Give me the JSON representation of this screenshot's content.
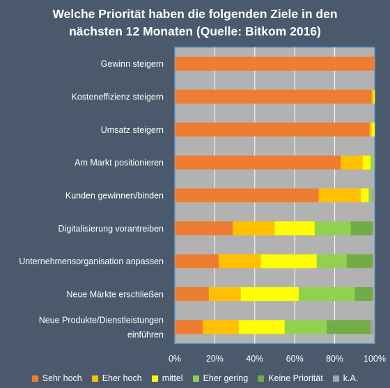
{
  "chart_data": {
    "type": "bar",
    "orientation": "horizontal",
    "stacked": "percent",
    "title_lines": [
      "Welche Priorität haben die folgenden Ziele in den",
      "nächsten 12 Monaten (Quelle: Bitkom 2016)"
    ],
    "categories": [
      [
        "Gewinn steigern"
      ],
      [
        "Kosteneffizienz steigern"
      ],
      [
        "Umsatz steigern"
      ],
      [
        "Am Markt positionieren"
      ],
      [
        "Kunden gewinnen/binden"
      ],
      [
        "Digitalisierung vorantreiben"
      ],
      [
        "Unternehmensorganisation anpassen"
      ],
      [
        "Neue Märkte erschließen"
      ],
      [
        "Neue Produkte/Dienstleistungen",
        "einführen"
      ]
    ],
    "series": [
      {
        "name": "Sehr hoch",
        "color": "#ed7d31",
        "values": [
          100,
          98.5,
          97.5,
          83,
          72,
          29,
          22,
          17,
          14
        ]
      },
      {
        "name": "Eher hoch",
        "color": "#ffc000",
        "values": [
          0,
          1,
          1,
          11,
          21,
          21,
          21,
          16,
          18
        ]
      },
      {
        "name": "mittel",
        "color": "#ffff00",
        "values": [
          0,
          0.5,
          1.5,
          4,
          4,
          20,
          28,
          29,
          23
        ]
      },
      {
        "name": "Eher gering",
        "color": "#92d050",
        "values": [
          0,
          0,
          0,
          1.5,
          1.5,
          18,
          15,
          28,
          21
        ]
      },
      {
        "name": "Keine Priorität",
        "color": "#70ad47",
        "values": [
          0,
          0,
          0,
          0,
          0,
          11,
          13,
          9,
          22
        ]
      },
      {
        "name": "k.A.",
        "color": "#a5a5a5",
        "values": [
          0,
          0,
          0,
          0.5,
          1.5,
          1,
          1,
          1,
          2
        ]
      }
    ],
    "x_ticks": [
      "0%",
      "20%",
      "40%",
      "60%",
      "80%",
      "100%"
    ],
    "xlim": [
      0,
      100
    ],
    "grid": true,
    "legend": "bottom",
    "colors": {
      "plot_background": "#b2b2b2",
      "page_background": "#4a5a6c",
      "grid": "#ffffff",
      "plot_border": "#5b9bd5"
    }
  }
}
